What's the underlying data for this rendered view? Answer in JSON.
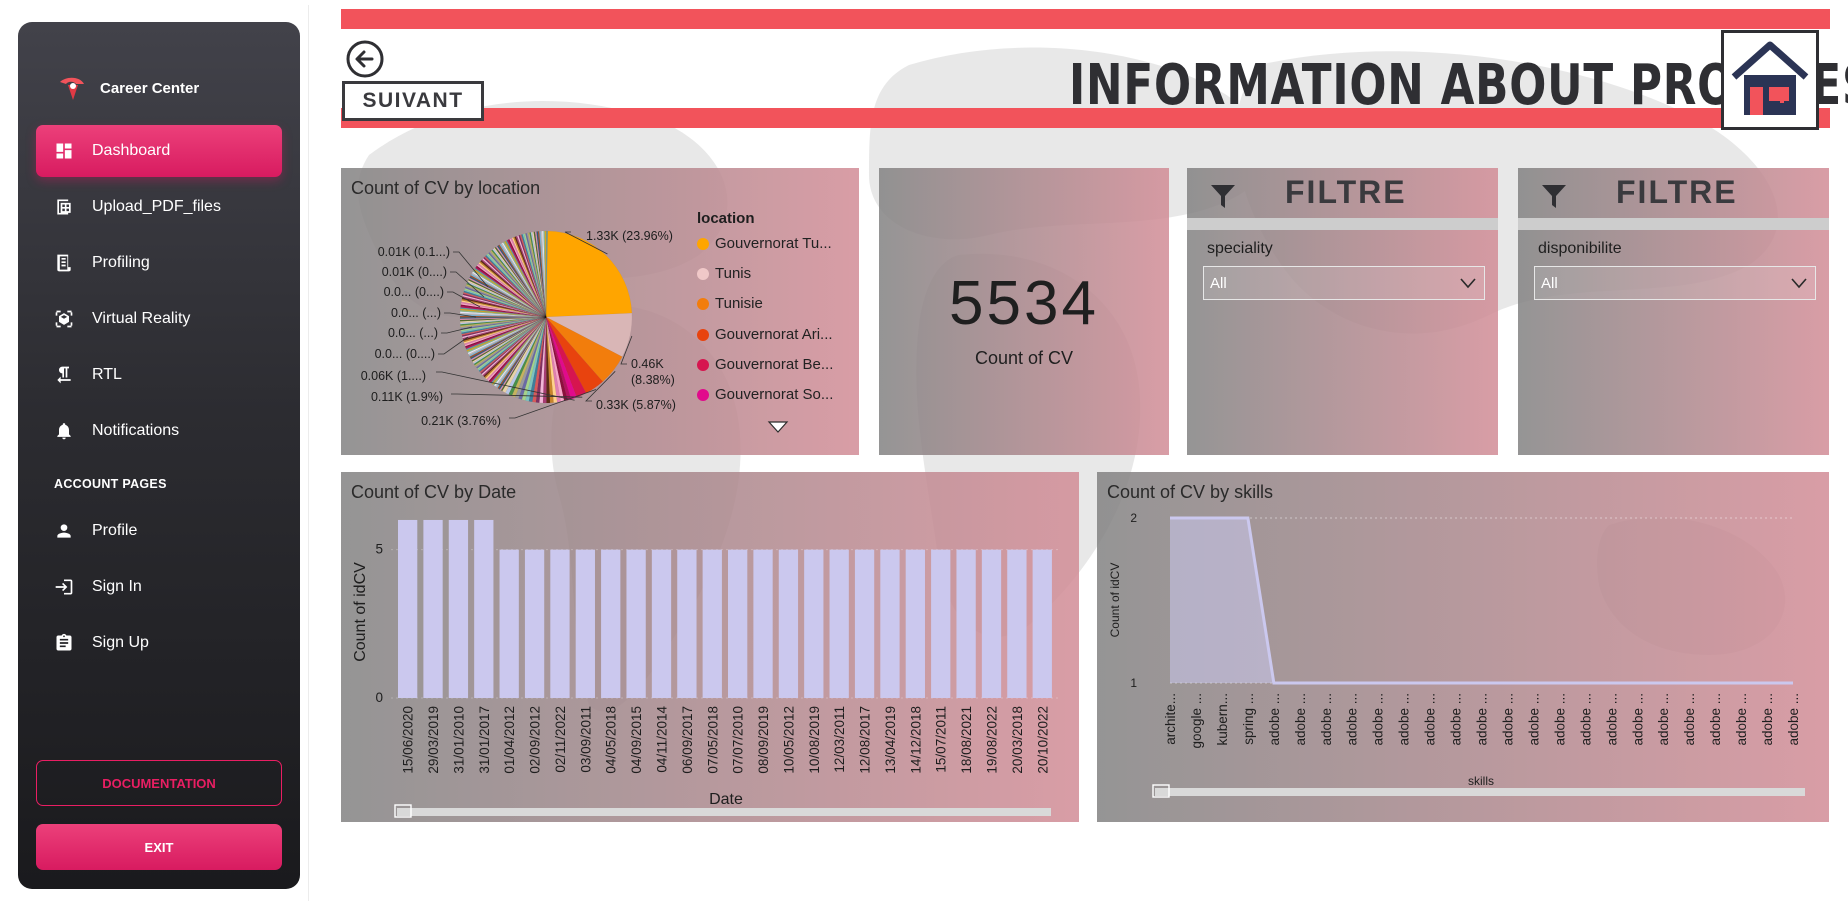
{
  "sidebar": {
    "brand": "Career Center",
    "items": [
      {
        "label": "Dashboard",
        "icon": "dashboard-icon",
        "active": true
      },
      {
        "label": "Upload_PDF_files",
        "icon": "table-icon",
        "active": false
      },
      {
        "label": "Profiling",
        "icon": "receipt-icon",
        "active": false
      },
      {
        "label": "Virtual Reality",
        "icon": "view-in-ar-icon",
        "active": false
      },
      {
        "label": "RTL",
        "icon": "format-textdirection-icon",
        "active": false
      },
      {
        "label": "Notifications",
        "icon": "bell-icon",
        "active": false
      }
    ],
    "account_heading": "ACCOUNT PAGES",
    "account_items": [
      {
        "label": "Profile",
        "icon": "person-icon"
      },
      {
        "label": "Sign In",
        "icon": "login-icon"
      },
      {
        "label": "Sign Up",
        "icon": "assignment-icon"
      }
    ],
    "documentation_label": "DOCUMENTATION",
    "exit_label": "EXIT"
  },
  "report": {
    "title": "INFORMATION ABOUT PROFILES",
    "next_label": "SUIVANT",
    "colors": {
      "band": "#f2535b",
      "accent": "#d81b60"
    },
    "kpi": {
      "value": "5534",
      "label": "Count of CV"
    },
    "filters": [
      {
        "title": "FILTRE",
        "label": "speciality",
        "value": "All"
      },
      {
        "title": "FILTRE",
        "label": "disponibilite",
        "value": "All"
      }
    ]
  },
  "chart_data": [
    {
      "type": "pie",
      "title": "Count of CV by location",
      "legend_title": "location",
      "legend": [
        {
          "name": "Gouvernorat Tu...",
          "color": "#ffa500"
        },
        {
          "name": "Tunis",
          "color": "#f0c8c8"
        },
        {
          "name": "Tunisie",
          "color": "#f27d0c"
        },
        {
          "name": "Gouvernorat Ari...",
          "color": "#e8430e"
        },
        {
          "name": "Gouvernorat Be...",
          "color": "#d6154f"
        },
        {
          "name": "Gouvernorat So...",
          "color": "#e10a8c"
        }
      ],
      "slices": [
        {
          "name": "Gouvernorat Tu...",
          "value": 1.33,
          "percent": 23.96,
          "label": "1.33K (23.96%)",
          "color": "#ffa500"
        },
        {
          "name": "Tunis",
          "value": 0.46,
          "percent": 8.38,
          "label": "0.46K (8.38%)",
          "color": "#d9b6b6"
        },
        {
          "name": "Tunisie",
          "value": 0.33,
          "percent": 5.87,
          "label": "0.33K (5.87%)",
          "color": "#f27d0c"
        },
        {
          "name": "Gouvernorat Ari...",
          "value": 0.21,
          "percent": 3.76,
          "label": "0.21K (3.76%)",
          "color": "#e8430e"
        },
        {
          "name": "Gouvernorat Be...",
          "value": 0.11,
          "percent": 1.9,
          "label": "0.11K (1.9%)",
          "color": "#d6154f"
        },
        {
          "name": "Gouvernorat So...",
          "value": 0.06,
          "percent": 1.1,
          "label": "0.06K (1....)",
          "color": "#e10a8c"
        }
      ],
      "other_labels": [
        "0.0... (0....)",
        "0.0... (...)",
        "0.0... (...)",
        "0.0... (0....)",
        "0.01K (0....)",
        "0.01K (0.1...)"
      ]
    },
    {
      "type": "bar",
      "title": "Count of CV by Date",
      "xlabel": "Date",
      "ylabel": "Count of idCV",
      "yticks": [
        0,
        5
      ],
      "ylim": [
        0,
        6.1
      ],
      "categories": [
        "15/06/2020",
        "29/03/2019",
        "31/01/2010",
        "31/01/2017",
        "01/04/2012",
        "02/09/2012",
        "02/11/2022",
        "03/09/2011",
        "04/05/2018",
        "04/09/2015",
        "04/11/2014",
        "06/09/2017",
        "07/05/2018",
        "07/07/2010",
        "08/09/2019",
        "10/05/2012",
        "10/08/2019",
        "12/03/2011",
        "12/08/2017",
        "13/04/2019",
        "14/12/2018",
        "15/07/2011",
        "18/08/2021",
        "19/08/2022",
        "20/03/2018",
        "20/10/2022"
      ],
      "values": [
        6,
        6,
        6,
        6,
        5,
        5,
        5,
        5,
        5,
        5,
        5,
        5,
        5,
        5,
        5,
        5,
        5,
        5,
        5,
        5,
        5,
        5,
        5,
        5,
        5,
        5
      ],
      "color": "#cbc8ee"
    },
    {
      "type": "area",
      "title": "Count of CV by skills",
      "xlabel": "skills",
      "ylabel": "Count of idCV",
      "yticks": [
        1,
        2
      ],
      "ylim": [
        1,
        2
      ],
      "categories": [
        "archite...",
        "google ...",
        "kubern...",
        "spring ...",
        "adobe ...",
        "adobe ...",
        "adobe ...",
        "adobe ...",
        "adobe ...",
        "adobe ...",
        "adobe ...",
        "adobe ...",
        "adobe ...",
        "adobe ...",
        "adobe ...",
        "adobe ...",
        "adobe ...",
        "adobe ...",
        "adobe ...",
        "adobe ...",
        "adobe ...",
        "adobe ...",
        "adobe ...",
        "adobe ...",
        "adobe ..."
      ],
      "values": [
        2,
        2,
        2,
        2,
        1,
        1,
        1,
        1,
        1,
        1,
        1,
        1,
        1,
        1,
        1,
        1,
        1,
        1,
        1,
        1,
        1,
        1,
        1,
        1,
        1
      ],
      "color": "#cbc8ee"
    }
  ]
}
